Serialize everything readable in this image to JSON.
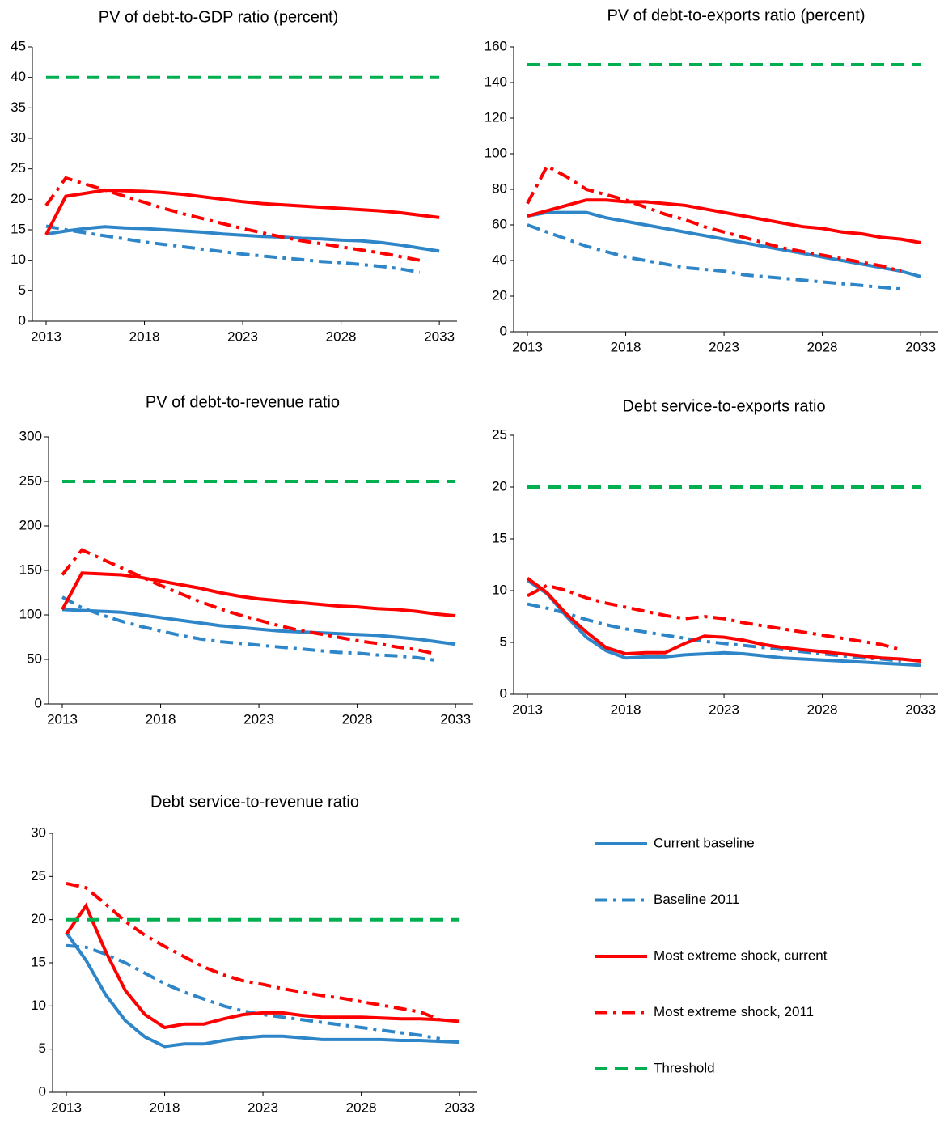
{
  "chart_data": [
    {
      "type": "line",
      "title": "PV of debt-to-GDP ratio (percent)",
      "x": [
        2013,
        2014,
        2015,
        2016,
        2017,
        2018,
        2019,
        2020,
        2021,
        2022,
        2023,
        2024,
        2025,
        2026,
        2027,
        2028,
        2029,
        2030,
        2031,
        2032,
        2033
      ],
      "xlim": [
        2012.3,
        2033.9
      ],
      "xticks": [
        2013,
        2018,
        2023,
        2028,
        2033
      ],
      "ylim": [
        0,
        45
      ],
      "yticks": [
        0,
        5,
        10,
        15,
        20,
        25,
        30,
        35,
        40,
        45
      ],
      "series": [
        {
          "name": "Current baseline",
          "color": "#2e86c8",
          "line_style": "solid",
          "values": [
            14.3,
            14.8,
            15.2,
            15.5,
            15.3,
            15.2,
            15.0,
            14.8,
            14.6,
            14.3,
            14.1,
            13.9,
            13.8,
            13.6,
            13.5,
            13.3,
            13.2,
            12.9,
            12.5,
            12.0,
            11.5
          ]
        },
        {
          "name": "Baseline 2011",
          "color": "#2e86c8",
          "line_style": "dash-dot",
          "values": [
            15.6,
            15.0,
            14.5,
            14.0,
            13.5,
            13.0,
            12.6,
            12.2,
            11.8,
            11.4,
            11.0,
            10.7,
            10.4,
            10.1,
            9.8,
            9.6,
            9.3,
            9.0,
            8.6,
            8.0,
            null
          ]
        },
        {
          "name": "Most extreme shock, current",
          "color": "#ff0000",
          "line_style": "solid",
          "values": [
            14.2,
            20.5,
            21.0,
            21.5,
            21.4,
            21.3,
            21.1,
            20.8,
            20.4,
            20.0,
            19.6,
            19.3,
            19.1,
            18.9,
            18.7,
            18.5,
            18.3,
            18.1,
            17.8,
            17.4,
            17.0
          ]
        },
        {
          "name": "Most extreme shock, 2011",
          "color": "#ff0000",
          "line_style": "dash-dot",
          "values": [
            19.0,
            23.5,
            22.5,
            21.5,
            20.5,
            19.5,
            18.5,
            17.6,
            16.8,
            16.0,
            15.2,
            14.5,
            13.8,
            13.2,
            12.7,
            12.2,
            11.7,
            11.2,
            10.6,
            10.0,
            null
          ]
        },
        {
          "name": "Threshold",
          "color": "#00b050",
          "line_style": "dashed",
          "values": [
            40,
            40,
            40,
            40,
            40,
            40,
            40,
            40,
            40,
            40,
            40,
            40,
            40,
            40,
            40,
            40,
            40,
            40,
            40,
            40,
            40
          ]
        }
      ]
    },
    {
      "type": "line",
      "title": "PV of debt-to-exports ratio (percent)",
      "x": [
        2013,
        2014,
        2015,
        2016,
        2017,
        2018,
        2019,
        2020,
        2021,
        2022,
        2023,
        2024,
        2025,
        2026,
        2027,
        2028,
        2029,
        2030,
        2031,
        2032,
        2033
      ],
      "xlim": [
        2012.3,
        2033.9
      ],
      "xticks": [
        2013,
        2018,
        2023,
        2028,
        2033
      ],
      "ylim": [
        0,
        160
      ],
      "yticks": [
        0,
        20,
        40,
        60,
        80,
        100,
        120,
        140,
        160
      ],
      "series": [
        {
          "name": "Current baseline",
          "color": "#2e86c8",
          "line_style": "solid",
          "values": [
            65,
            67,
            67,
            67,
            64,
            62,
            60,
            58,
            56,
            54,
            52,
            50,
            48,
            46,
            44,
            42,
            40,
            38,
            36,
            34,
            31
          ]
        },
        {
          "name": "Baseline 2011",
          "color": "#2e86c8",
          "line_style": "dash-dot",
          "values": [
            60,
            56,
            52,
            48,
            45,
            42,
            40,
            38,
            36,
            35,
            34,
            32,
            31,
            30,
            29,
            28,
            27,
            26,
            25,
            24,
            null
          ]
        },
        {
          "name": "Most extreme shock, current",
          "color": "#ff0000",
          "line_style": "solid",
          "values": [
            65,
            68,
            71,
            74,
            74,
            73,
            73,
            72,
            71,
            69,
            67,
            65,
            63,
            61,
            59,
            58,
            56,
            55,
            53,
            52,
            50
          ]
        },
        {
          "name": "Most extreme shock, 2011",
          "color": "#ff0000",
          "line_style": "dash-dot",
          "values": [
            72,
            93,
            87,
            80,
            77,
            74,
            70,
            66,
            63,
            59,
            56,
            53,
            50,
            47,
            45,
            43,
            41,
            39,
            37,
            34,
            null
          ]
        },
        {
          "name": "Threshold",
          "color": "#00b050",
          "line_style": "dashed",
          "values": [
            150,
            150,
            150,
            150,
            150,
            150,
            150,
            150,
            150,
            150,
            150,
            150,
            150,
            150,
            150,
            150,
            150,
            150,
            150,
            150,
            150
          ]
        }
      ]
    },
    {
      "type": "line",
      "title": "PV of debt-to-revenue ratio",
      "x": [
        2013,
        2014,
        2015,
        2016,
        2017,
        2018,
        2019,
        2020,
        2021,
        2022,
        2023,
        2024,
        2025,
        2026,
        2027,
        2028,
        2029,
        2030,
        2031,
        2032,
        2033
      ],
      "xlim": [
        2012.3,
        2033.9
      ],
      "xticks": [
        2013,
        2018,
        2023,
        2028,
        2033
      ],
      "ylim": [
        0,
        300
      ],
      "yticks": [
        0,
        50,
        100,
        150,
        200,
        250,
        300
      ],
      "series": [
        {
          "name": "Current baseline",
          "color": "#2e86c8",
          "line_style": "solid",
          "values": [
            106,
            105,
            104,
            103,
            100,
            97,
            94,
            91,
            88,
            86,
            84,
            82,
            81,
            80,
            79,
            78,
            77,
            75,
            73,
            70,
            67
          ]
        },
        {
          "name": "Baseline 2011",
          "color": "#2e86c8",
          "line_style": "dash-dot",
          "values": [
            120,
            108,
            100,
            93,
            87,
            82,
            77,
            73,
            70,
            68,
            66,
            64,
            62,
            60,
            58,
            57,
            55,
            54,
            52,
            49,
            null
          ]
        },
        {
          "name": "Most extreme shock, current",
          "color": "#ff0000",
          "line_style": "solid",
          "values": [
            106,
            147,
            146,
            145,
            142,
            138,
            134,
            130,
            125,
            121,
            118,
            116,
            114,
            112,
            110,
            109,
            107,
            106,
            104,
            101,
            99
          ]
        },
        {
          "name": "Most extreme shock, 2011",
          "color": "#ff0000",
          "line_style": "dash-dot",
          "values": [
            145,
            173,
            163,
            153,
            143,
            133,
            124,
            115,
            107,
            100,
            94,
            88,
            83,
            79,
            75,
            71,
            68,
            64,
            61,
            56,
            null
          ]
        },
        {
          "name": "Threshold",
          "color": "#00b050",
          "line_style": "dashed",
          "values": [
            250,
            250,
            250,
            250,
            250,
            250,
            250,
            250,
            250,
            250,
            250,
            250,
            250,
            250,
            250,
            250,
            250,
            250,
            250,
            250,
            250
          ]
        }
      ]
    },
    {
      "type": "line",
      "title": "Debt service-to-exports ratio",
      "x": [
        2013,
        2014,
        2015,
        2016,
        2017,
        2018,
        2019,
        2020,
        2021,
        2022,
        2023,
        2024,
        2025,
        2026,
        2027,
        2028,
        2029,
        2030,
        2031,
        2032,
        2033
      ],
      "xlim": [
        2012.3,
        2033.9
      ],
      "xticks": [
        2013,
        2018,
        2023,
        2028,
        2033
      ],
      "ylim": [
        0,
        25
      ],
      "yticks": [
        0,
        5,
        10,
        15,
        20,
        25
      ],
      "series": [
        {
          "name": "Current baseline",
          "color": "#2e86c8",
          "line_style": "solid",
          "values": [
            11.0,
            9.7,
            7.5,
            5.5,
            4.2,
            3.5,
            3.6,
            3.6,
            3.8,
            3.9,
            4.0,
            3.9,
            3.7,
            3.5,
            3.4,
            3.3,
            3.2,
            3.1,
            3.0,
            2.9,
            2.8
          ]
        },
        {
          "name": "Baseline 2011",
          "color": "#2e86c8",
          "line_style": "dash-dot",
          "values": [
            8.7,
            8.3,
            7.8,
            7.2,
            6.7,
            6.3,
            6.0,
            5.7,
            5.4,
            5.1,
            4.9,
            4.7,
            4.5,
            4.3,
            4.1,
            3.9,
            3.7,
            3.5,
            3.4,
            3.2,
            null
          ]
        },
        {
          "name": "Most extreme shock, current",
          "color": "#ff0000",
          "line_style": "solid",
          "values": [
            11.2,
            9.8,
            7.7,
            6.0,
            4.5,
            3.9,
            4.0,
            4.0,
            4.9,
            5.6,
            5.5,
            5.2,
            4.8,
            4.5,
            4.3,
            4.1,
            3.9,
            3.7,
            3.5,
            3.4,
            3.2
          ]
        },
        {
          "name": "Most extreme shock, 2011",
          "color": "#ff0000",
          "line_style": "dash-dot",
          "values": [
            9.5,
            10.5,
            10.0,
            9.3,
            8.8,
            8.4,
            8.0,
            7.6,
            7.3,
            7.5,
            7.3,
            6.9,
            6.6,
            6.3,
            6.0,
            5.7,
            5.4,
            5.1,
            4.8,
            4.3,
            null
          ]
        },
        {
          "name": "Threshold",
          "color": "#00b050",
          "line_style": "dashed",
          "values": [
            20,
            20,
            20,
            20,
            20,
            20,
            20,
            20,
            20,
            20,
            20,
            20,
            20,
            20,
            20,
            20,
            20,
            20,
            20,
            20,
            20
          ]
        }
      ]
    },
    {
      "type": "line",
      "title": "Debt service-to-revenue ratio",
      "x": [
        2013,
        2014,
        2015,
        2016,
        2017,
        2018,
        2019,
        2020,
        2021,
        2022,
        2023,
        2024,
        2025,
        2026,
        2027,
        2028,
        2029,
        2030,
        2031,
        2032,
        2033
      ],
      "xlim": [
        2012.3,
        2033.9
      ],
      "xticks": [
        2013,
        2018,
        2023,
        2028,
        2033
      ],
      "ylim": [
        0,
        30
      ],
      "yticks": [
        0,
        5,
        10,
        15,
        20,
        25,
        30
      ],
      "series": [
        {
          "name": "Current baseline",
          "color": "#2e86c8",
          "line_style": "solid",
          "values": [
            18.5,
            15.3,
            11.3,
            8.3,
            6.4,
            5.3,
            5.6,
            5.6,
            6.0,
            6.3,
            6.5,
            6.5,
            6.3,
            6.1,
            6.1,
            6.1,
            6.1,
            6.0,
            6.0,
            5.9,
            5.8
          ]
        },
        {
          "name": "Baseline 2011",
          "color": "#2e86c8",
          "line_style": "dash-dot",
          "values": [
            17.0,
            16.8,
            16.0,
            15.0,
            13.8,
            12.6,
            11.6,
            10.8,
            10.0,
            9.4,
            9.0,
            8.7,
            8.4,
            8.1,
            7.8,
            7.5,
            7.2,
            6.9,
            6.6,
            6.2,
            null
          ]
        },
        {
          "name": "Most extreme shock, current",
          "color": "#ff0000",
          "line_style": "solid",
          "values": [
            18.3,
            21.6,
            16.3,
            11.8,
            9.0,
            7.5,
            7.9,
            7.9,
            8.5,
            9.0,
            9.2,
            9.2,
            8.9,
            8.7,
            8.7,
            8.7,
            8.6,
            8.5,
            8.5,
            8.4,
            8.2
          ]
        },
        {
          "name": "Most extreme shock, 2011",
          "color": "#ff0000",
          "line_style": "dash-dot",
          "values": [
            24.2,
            23.7,
            21.8,
            19.8,
            18.2,
            16.9,
            15.7,
            14.5,
            13.6,
            12.9,
            12.5,
            12.0,
            11.6,
            11.2,
            10.9,
            10.5,
            10.1,
            9.7,
            9.3,
            8.4,
            null
          ]
        },
        {
          "name": "Threshold",
          "color": "#00b050",
          "line_style": "dashed",
          "values": [
            20,
            20,
            20,
            20,
            20,
            20,
            20,
            20,
            20,
            20,
            20,
            20,
            20,
            20,
            20,
            20,
            20,
            20,
            20,
            20,
            20
          ]
        }
      ]
    }
  ]
}
